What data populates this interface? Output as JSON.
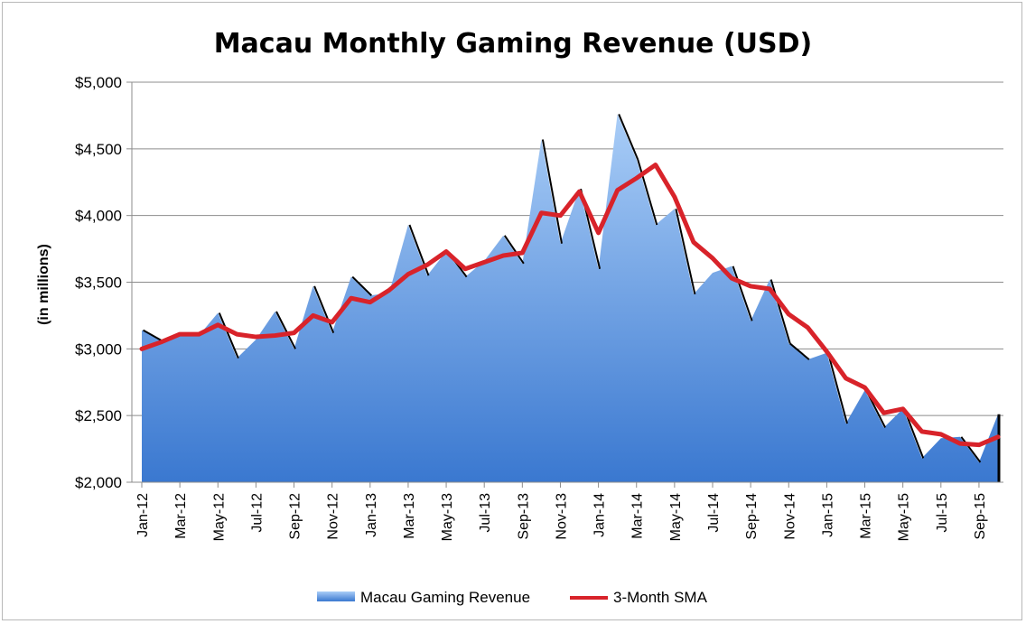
{
  "chart_data": {
    "type": "area",
    "title": "Macau Monthly Gaming Revenue (USD)",
    "ylabel": "(in millions)",
    "xlabel": "",
    "ylim": [
      2000,
      5000
    ],
    "y_ticks": [
      "$2,000",
      "$2,500",
      "$3,000",
      "$3,500",
      "$4,000",
      "$4,500",
      "$5,000"
    ],
    "y_tick_values": [
      2000,
      2500,
      3000,
      3500,
      4000,
      4500,
      5000
    ],
    "x": [
      "Jan-12",
      "Feb-12",
      "Mar-12",
      "Apr-12",
      "May-12",
      "Jun-12",
      "Jul-12",
      "Aug-12",
      "Sep-12",
      "Oct-12",
      "Nov-12",
      "Dec-12",
      "Jan-13",
      "Feb-13",
      "Mar-13",
      "Apr-13",
      "May-13",
      "Jun-13",
      "Jul-13",
      "Aug-13",
      "Sep-13",
      "Oct-13",
      "Nov-13",
      "Dec-13",
      "Jan-14",
      "Feb-14",
      "Mar-14",
      "Apr-14",
      "May-14",
      "Jun-14",
      "Jul-14",
      "Aug-14",
      "Sep-14",
      "Oct-14",
      "Nov-14",
      "Dec-14",
      "Jan-15",
      "Feb-15",
      "Mar-15",
      "Apr-15",
      "May-15",
      "Jun-15",
      "Jul-15",
      "Aug-15",
      "Sep-15",
      "Oct-15"
    ],
    "x_tick_labels": [
      "Jan-12",
      "Mar-12",
      "May-12",
      "Jul-12",
      "Sep-12",
      "Nov-12",
      "Jan-13",
      "Mar-13",
      "May-13",
      "Jul-13",
      "Sep-13",
      "Nov-13",
      "Jan-14",
      "Mar-14",
      "May-14",
      "Jul-14",
      "Sep-14",
      "Nov-14",
      "Jan-15",
      "Mar-15",
      "May-15",
      "Jul-15",
      "Sep-15"
    ],
    "grid": true,
    "legend_position": "bottom",
    "series": [
      {
        "name": "Macau Gaming Revenue",
        "type": "area",
        "color_top": "#a9cdf7",
        "color_bottom": "#3a78d0",
        "values": [
          3140,
          3060,
          3100,
          3100,
          3270,
          2930,
          3070,
          3280,
          3000,
          3470,
          3120,
          3540,
          3400,
          3420,
          3930,
          3550,
          3730,
          3540,
          3660,
          3850,
          3640,
          4570,
          3790,
          4200,
          3600,
          4760,
          4420,
          3930,
          4050,
          3410,
          3570,
          3620,
          3210,
          3520,
          3040,
          2920,
          2970,
          2440,
          2690,
          2410,
          2550,
          2180,
          2330,
          2340,
          2150,
          2510
        ]
      },
      {
        "name": "3-Month SMA",
        "type": "line",
        "color": "#d8232a",
        "values": [
          3000,
          3050,
          3110,
          3110,
          3180,
          3110,
          3090,
          3100,
          3120,
          3250,
          3200,
          3380,
          3350,
          3440,
          3560,
          3630,
          3730,
          3600,
          3650,
          3700,
          3720,
          4020,
          4000,
          4180,
          3870,
          4190,
          4280,
          4380,
          4140,
          3800,
          3680,
          3530,
          3470,
          3450,
          3260,
          3160,
          2980,
          2780,
          2710,
          2520,
          2550,
          2380,
          2360,
          2290,
          2280,
          2340
        ]
      }
    ]
  }
}
